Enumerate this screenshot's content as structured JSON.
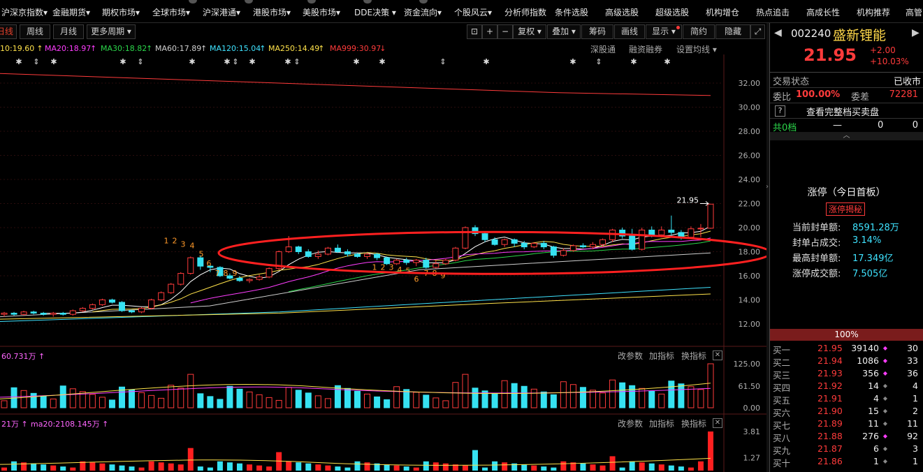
{
  "top_menu": [
    {
      "label": "沪深京指数▾"
    },
    {
      "label": "金融期货▾"
    },
    {
      "label": "期权市场▾"
    },
    {
      "label": "全球市场▾"
    },
    {
      "label": "沪深港通▾"
    },
    {
      "label": "港股市场▾"
    },
    {
      "label": "美股市场▾"
    },
    {
      "label": "DDE决策 ▾"
    },
    {
      "label": "资金流向▾"
    },
    {
      "label": "个股风云▾"
    },
    {
      "label": "分析师指数"
    },
    {
      "label": "条件选股"
    },
    {
      "label": "高级选股"
    },
    {
      "label": "超级选股"
    },
    {
      "label": "机构增仓"
    },
    {
      "label": "热点追击"
    },
    {
      "label": "高成长性"
    },
    {
      "label": "机构推荐"
    },
    {
      "label": "高管"
    }
  ],
  "period_tabs": [
    {
      "label": "日线"
    },
    {
      "label": "周线"
    },
    {
      "label": "月线"
    },
    {
      "label": "更多周期 ▾"
    }
  ],
  "toolbar_right": [
    {
      "label": "复权 ▾"
    },
    {
      "label": "叠加 ▾"
    },
    {
      "label": "筹码"
    },
    {
      "label": "画线"
    },
    {
      "label": "显示 ▾"
    },
    {
      "label": "简约"
    },
    {
      "label": "隐藏"
    }
  ],
  "ma_legend": [
    {
      "text": "10:19.60",
      "color": "#ffe24a"
    },
    {
      "text": "MA20:18.97",
      "color": "#ff3dff"
    },
    {
      "text": "MA30:18.82",
      "color": "#2bd64a"
    },
    {
      "text": "MA60:17.89",
      "color": "#cfcfcf"
    },
    {
      "text": "MA120:15.04",
      "color": "#3fe3ff"
    },
    {
      "text": "MA250:14.49",
      "color": "#ffe24a"
    },
    {
      "text": "MA999:30.97",
      "color": "#ff3b3b"
    }
  ],
  "main_chart_links": {
    "a": "深股通",
    "b": "融资融券",
    "c": "设置均线 ▾"
  },
  "price_axis": [
    "32.00",
    "30.00",
    "28.00",
    "26.00",
    "24.00",
    "22.00",
    "20.00",
    "18.00",
    "16.00",
    "14.00",
    "12.00"
  ],
  "last_price_tag": "21.95",
  "volume_pane": {
    "legend": "60.731万 ↑",
    "links": {
      "a": "改参数",
      "b": "加指标",
      "c": "换指标"
    },
    "axis": [
      "125.00",
      "61.50",
      "0.00"
    ]
  },
  "indicator_pane": {
    "legend_a": "21万 ↑",
    "legend_b": "ma20:2108.145万 ↑",
    "links": {
      "a": "改参数",
      "b": "加指标",
      "c": "换指标"
    },
    "axis": [
      "3.81",
      "1.27"
    ]
  },
  "stock": {
    "code": "002240",
    "name": "盛新锂能",
    "price": "21.95",
    "change": "+2.00",
    "change_pct": "+10.03%"
  },
  "status": {
    "label": "交易状态",
    "value": "已收市"
  },
  "weibi": {
    "label": "委比",
    "value": "100.00%",
    "label2": "委差",
    "value2": "72281"
  },
  "full_book": {
    "help": "?",
    "label": "查看完整档买卖盘"
  },
  "sell_summary": {
    "label": "共0档",
    "dash": "—",
    "v1": "0",
    "v2": "0"
  },
  "limit_up": {
    "title": "涨停（今日首板）",
    "tag": "涨停揭秘",
    "rows": [
      {
        "label": "当前封单额:",
        "value": "8591.28万"
      },
      {
        "label": "封单占成交:",
        "value": "3.14%"
      },
      {
        "label": "最高封单额:",
        "value": "17.349亿"
      },
      {
        "label": "涨停成交额:",
        "value": "7.505亿"
      }
    ]
  },
  "ratio_bar": "100%",
  "order_book": [
    {
      "label": "买一",
      "price": "21.95",
      "vol": "39140",
      "n": "30"
    },
    {
      "label": "买二",
      "price": "21.94",
      "vol": "1086",
      "n": "33"
    },
    {
      "label": "买三",
      "price": "21.93",
      "vol": "356",
      "n": "36"
    },
    {
      "label": "买四",
      "price": "21.92",
      "vol": "14",
      "n": "4"
    },
    {
      "label": "买五",
      "price": "21.91",
      "vol": "4",
      "n": "1"
    },
    {
      "label": "买六",
      "price": "21.90",
      "vol": "15",
      "n": "2"
    },
    {
      "label": "买七",
      "price": "21.89",
      "vol": "11",
      "n": "11"
    },
    {
      "label": "买八",
      "price": "21.88",
      "vol": "276",
      "n": "92"
    },
    {
      "label": "买九",
      "price": "21.87",
      "vol": "6",
      "n": "3"
    },
    {
      "label": "买十",
      "price": "21.86",
      "vol": "1",
      "n": "1"
    }
  ],
  "colors": {
    "up": "#ff3b3b",
    "down": "#36e2f2",
    "ellipse": "#ff2020"
  },
  "chart_data": {
    "type": "candlestick",
    "y_range": [
      11,
      33
    ],
    "last_close": 21.95,
    "candles": [
      [
        12.8,
        12.9,
        12.6,
        13.0
      ],
      [
        12.9,
        12.8,
        12.7,
        13.0
      ],
      [
        12.8,
        13.0,
        12.7,
        13.1
      ],
      [
        13.0,
        12.9,
        12.8,
        13.1
      ],
      [
        12.9,
        12.8,
        12.7,
        13.0
      ],
      [
        12.8,
        12.9,
        12.6,
        13.0
      ],
      [
        12.9,
        12.8,
        12.7,
        13.0
      ],
      [
        12.8,
        13.1,
        12.7,
        13.2
      ],
      [
        13.1,
        13.3,
        13.0,
        13.4
      ],
      [
        13.3,
        13.6,
        13.2,
        13.7
      ],
      [
        13.6,
        14.0,
        13.5,
        14.1
      ],
      [
        14.0,
        13.8,
        13.7,
        14.1
      ],
      [
        13.8,
        13.1,
        13.0,
        13.9
      ],
      [
        13.1,
        13.0,
        12.9,
        13.2
      ],
      [
        13.0,
        13.3,
        12.9,
        13.4
      ],
      [
        13.3,
        14.0,
        13.2,
        14.1
      ],
      [
        14.0,
        14.6,
        13.9,
        14.7
      ],
      [
        14.6,
        15.3,
        14.5,
        15.4
      ],
      [
        15.3,
        16.2,
        15.2,
        16.3
      ],
      [
        16.2,
        17.5,
        16.1,
        17.6
      ],
      [
        17.5,
        16.8,
        16.5,
        17.7
      ],
      [
        16.8,
        16.7,
        16.3,
        16.9
      ],
      [
        16.7,
        16.0,
        15.9,
        16.8
      ],
      [
        16.0,
        15.8,
        15.7,
        16.2
      ],
      [
        15.8,
        15.6,
        15.5,
        16.0
      ],
      [
        15.6,
        15.7,
        15.4,
        15.8
      ],
      [
        15.7,
        15.9,
        15.6,
        16.1
      ],
      [
        15.9,
        16.6,
        15.8,
        16.7
      ],
      [
        16.6,
        18.0,
        16.5,
        18.1
      ],
      [
        18.0,
        18.4,
        17.9,
        19.3
      ],
      [
        18.4,
        18.0,
        17.8,
        18.5
      ],
      [
        18.0,
        17.6,
        17.5,
        18.2
      ],
      [
        17.6,
        17.8,
        17.4,
        18.1
      ],
      [
        17.8,
        18.3,
        17.7,
        18.4
      ],
      [
        18.3,
        18.0,
        17.9,
        18.6
      ],
      [
        18.0,
        17.8,
        17.6,
        18.2
      ],
      [
        17.8,
        17.6,
        17.5,
        17.9
      ],
      [
        17.6,
        17.8,
        17.4,
        17.9
      ],
      [
        17.8,
        17.5,
        17.3,
        17.9
      ],
      [
        17.5,
        17.0,
        16.9,
        17.6
      ],
      [
        17.0,
        17.3,
        16.9,
        17.4
      ],
      [
        17.3,
        17.1,
        16.9,
        17.5
      ],
      [
        17.1,
        17.3,
        16.8,
        17.4
      ],
      [
        17.3,
        16.7,
        16.6,
        17.5
      ],
      [
        16.7,
        17.0,
        16.6,
        17.3
      ],
      [
        17.0,
        17.3,
        16.9,
        17.4
      ],
      [
        17.3,
        18.3,
        17.2,
        18.4
      ],
      [
        18.3,
        20.0,
        18.2,
        20.1
      ],
      [
        20.0,
        19.5,
        19.3,
        20.2
      ],
      [
        19.5,
        19.0,
        18.8,
        19.6
      ],
      [
        19.0,
        18.6,
        18.5,
        19.2
      ],
      [
        18.6,
        19.0,
        18.4,
        19.1
      ],
      [
        19.0,
        18.7,
        18.4,
        19.1
      ],
      [
        18.7,
        18.4,
        18.2,
        18.9
      ],
      [
        18.4,
        18.7,
        18.3,
        18.8
      ],
      [
        18.7,
        18.4,
        18.2,
        18.9
      ],
      [
        18.4,
        17.7,
        17.5,
        18.5
      ],
      [
        17.7,
        18.1,
        17.6,
        18.3
      ],
      [
        18.1,
        18.5,
        18.0,
        18.6
      ],
      [
        18.5,
        18.4,
        18.3,
        18.7
      ],
      [
        18.4,
        18.6,
        18.2,
        18.8
      ],
      [
        18.6,
        19.0,
        18.4,
        19.1
      ],
      [
        19.0,
        19.8,
        18.8,
        19.9
      ],
      [
        19.8,
        19.3,
        19.1,
        20.0
      ],
      [
        19.3,
        18.2,
        18.1,
        19.9
      ],
      [
        18.2,
        19.8,
        18.1,
        20.0
      ],
      [
        19.8,
        19.4,
        19.2,
        20.1
      ],
      [
        19.4,
        19.8,
        19.2,
        20.1
      ],
      [
        19.8,
        19.6,
        19.3,
        21.0
      ],
      [
        19.6,
        19.2,
        19.0,
        19.8
      ],
      [
        19.2,
        19.9,
        19.1,
        20.1
      ],
      [
        19.9,
        19.95,
        19.2,
        20.3
      ],
      [
        19.95,
        21.95,
        19.9,
        21.95
      ]
    ]
  }
}
